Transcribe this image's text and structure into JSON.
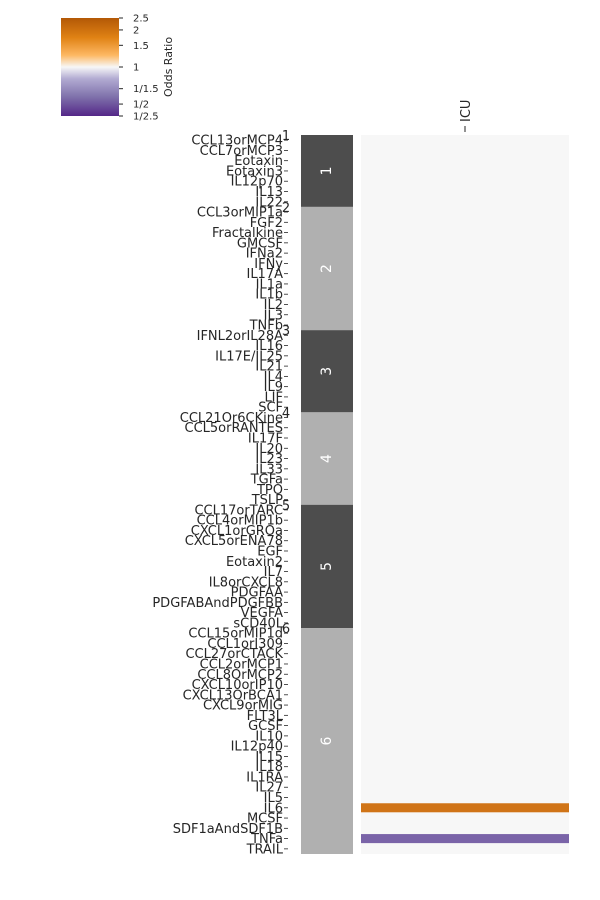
{
  "chart_data": {
    "type": "heatmap",
    "title": "",
    "columns": [
      "ICU"
    ],
    "colorbar": {
      "label": "Odds Ratio",
      "scale": "log",
      "range": [
        0.4,
        2.5
      ],
      "ticks": [
        {
          "value": 2.5,
          "label": "2.5"
        },
        {
          "value": 2,
          "label": "2"
        },
        {
          "value": 1.5,
          "label": "1.5"
        },
        {
          "value": 1,
          "label": "1"
        },
        {
          "value": 0.6667,
          "label": "1/1.5"
        },
        {
          "value": 0.5,
          "label": "1/2"
        },
        {
          "value": 0.4,
          "label": "1/2.5"
        }
      ],
      "colors": {
        "high": "#b35806",
        "mid": "#f7f7f7",
        "low": "#542788"
      }
    },
    "clusters": [
      {
        "id": "1",
        "color": "#4d4d4d",
        "rows": [
          "CCL13orMCP4",
          "CCL7orMCP3",
          "Eotaxin",
          "Eotaxin3",
          "IL12p70",
          "IL13",
          "IL22"
        ]
      },
      {
        "id": "2",
        "color": "#b0b0b0",
        "rows": [
          "CCL3orMIP1a",
          "FGF2",
          "Fractalkine",
          "GMCSF",
          "IFNa2",
          "IFNy",
          "IL17A",
          "IL1a",
          "IL1b",
          "IL2",
          "IL3",
          "TNFb"
        ]
      },
      {
        "id": "3",
        "color": "#4d4d4d",
        "rows": [
          "IFNL2orIL28A",
          "IL16",
          "IL17E/IL25",
          "IL21",
          "IL4",
          "IL9",
          "LIF",
          "SCF"
        ]
      },
      {
        "id": "4",
        "color": "#b0b0b0",
        "rows": [
          "CCL21Or6CKine",
          "CCL5orRANTES",
          "IL17F",
          "IL20",
          "IL23",
          "IL33",
          "TGFa",
          "TPO",
          "TSLP"
        ]
      },
      {
        "id": "5",
        "color": "#4d4d4d",
        "rows": [
          "CCL17orTARC",
          "CCL4orMIP1b",
          "CXCL1orGROa",
          "CXCL5orENA78",
          "EGF",
          "Eotaxin2",
          "IL7",
          "IL8orCXCL8",
          "PDGFAA",
          "PDGFABAndPDGFBB",
          "VEGFA",
          "sCD40L"
        ]
      },
      {
        "id": "6",
        "color": "#b0b0b0",
        "rows": [
          "CCL15orMIP1d",
          "CCL1orI309",
          "CCL27orCTACK",
          "CCL2orMCP1",
          "CCL8OrMCP2",
          "CXCL10orIP10",
          "CXCL13OrBCA1",
          "CXCL9orMIG",
          "FLT3L",
          "GCSF",
          "IL10",
          "IL12p40",
          "IL15",
          "IL18",
          "IL1RA",
          "IL27",
          "IL5",
          "IL6",
          "MCSF",
          "SDF1aAndSDF1B",
          "TNFa",
          "TRAIL"
        ]
      }
    ],
    "values": {
      "ICU": {
        "IL6": 2.0,
        "TNFa": 0.5
      }
    },
    "default_value": 1
  }
}
